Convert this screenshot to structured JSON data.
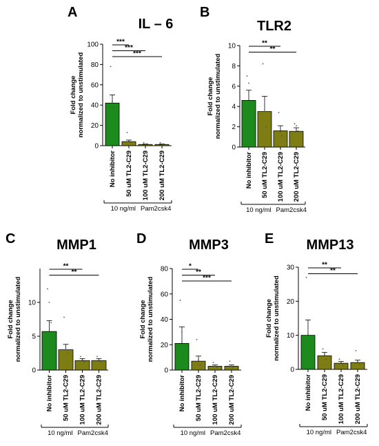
{
  "colors": {
    "green": "#1c8a1c",
    "olive": "#7d7d14"
  },
  "chart_data": [
    {
      "type": "bar",
      "panel": "A",
      "title": "IL – 6",
      "ylabel": [
        "Fold change",
        "normalized to unstimulated"
      ],
      "categories": [
        "No inhibitor",
        "50 uM TL2-C29",
        "100 uM TL2-C29",
        "200 uM TL2-C29"
      ],
      "values": [
        42,
        4,
        1.2,
        1.2
      ],
      "errors": [
        8,
        1.5,
        0.5,
        0.5
      ],
      "points": [
        [
          78,
          44,
          38
        ],
        [
          13,
          5,
          3
        ],
        [
          3,
          1.5,
          1
        ],
        [
          3,
          1.5,
          1
        ]
      ],
      "ylim": [
        0,
        100
      ],
      "yticks": [
        0,
        20,
        40,
        60,
        80,
        100
      ],
      "significance": [
        {
          "from": 0,
          "to": 1,
          "label": "***"
        },
        {
          "from": 0,
          "to": 2,
          "label": "***"
        },
        {
          "from": 0,
          "to": 3,
          "label": "***"
        }
      ],
      "group_labels": [
        "10 ng/ml",
        "Pam2csk4"
      ]
    },
    {
      "type": "bar",
      "panel": "B",
      "title": "TLR2",
      "ylabel": [
        "Fold change",
        "normalized to unstimulated"
      ],
      "categories": [
        "No inhibitor",
        "50 uM TL2-C29",
        "100 uM TL2-C29",
        "200 uM TL2-C29"
      ],
      "values": [
        4.6,
        3.5,
        1.6,
        1.55
      ],
      "errors": [
        1.0,
        1.5,
        0.5,
        0.35
      ],
      "points": [
        [
          7,
          6.3,
          4.5
        ],
        [
          8.2,
          3.5,
          2
        ],
        [
          3.4,
          1.5,
          1.1
        ],
        [
          2.3,
          2.1,
          1.6
        ]
      ],
      "ylim": [
        0,
        10
      ],
      "yticks": [
        0,
        2,
        4,
        6,
        8,
        10
      ],
      "significance": [
        {
          "from": 0,
          "to": 2,
          "label": "**"
        },
        {
          "from": 0,
          "to": 3,
          "label": "**"
        }
      ],
      "group_labels": [
        "10 ng/ml",
        "Pam2csk4"
      ]
    },
    {
      "type": "bar",
      "panel": "C",
      "title": "MMP1",
      "ylabel": [
        "Fold change",
        "normalized to unstimulated"
      ],
      "categories": [
        "No inhibitor",
        "50 uM TL2-C29",
        "100 uM TL2-C29",
        "200 uM TL2-C29"
      ],
      "values": [
        5.7,
        3.0,
        1.4,
        1.4
      ],
      "errors": [
        1.6,
        0.8,
        0.3,
        0.3
      ],
      "points": [
        [
          12,
          10,
          7
        ],
        [
          7.8,
          3,
          2.5
        ],
        [
          2,
          1.5,
          1.2
        ],
        [
          2,
          1.6,
          1.2
        ]
      ],
      "ylim": [
        0,
        15
      ],
      "yticks": [
        0,
        5,
        10
      ],
      "significance": [
        {
          "from": 0,
          "to": 2,
          "label": "**"
        },
        {
          "from": 0,
          "to": 3,
          "label": "**"
        }
      ],
      "group_labels": [
        "10 ng/ml",
        "Pam2csk4"
      ]
    },
    {
      "type": "bar",
      "panel": "D",
      "title": "MMP3",
      "ylabel": [
        "Fold change",
        "normalized to unstimulated"
      ],
      "categories": [
        "No inhibitor",
        "50 uM TL2-C29",
        "100 uM TL2-C29",
        "200 uM TL2-C29"
      ],
      "values": [
        21,
        7,
        3,
        3
      ],
      "errors": [
        13,
        4,
        1,
        1
      ],
      "points": [
        [
          55,
          30,
          10
        ],
        [
          24,
          8,
          4
        ],
        [
          6,
          3,
          2
        ],
        [
          7,
          3,
          2
        ]
      ],
      "ylim": [
        0,
        80
      ],
      "yticks": [
        0,
        20,
        40,
        60,
        80
      ],
      "significance": [
        {
          "from": 0,
          "to": 1,
          "label": "*"
        },
        {
          "from": 0,
          "to": 2,
          "label": "**"
        },
        {
          "from": 0,
          "to": 3,
          "label": "***"
        }
      ],
      "group_labels": [
        "10 ng/ml",
        "Pam2csk4"
      ]
    },
    {
      "type": "bar",
      "panel": "E",
      "title": "MMP13",
      "ylabel": [
        "Fold change",
        "normalized to unstimulated"
      ],
      "categories": [
        "No inhibitor",
        "50 uM TL2-C29",
        "100 uM TL2-C29",
        "200 uM TL2-C29"
      ],
      "values": [
        10,
        4,
        1.8,
        2.0
      ],
      "errors": [
        4.5,
        1.0,
        0.5,
        0.7
      ],
      "points": [
        [
          27,
          8,
          6
        ],
        [
          6,
          4.5,
          3
        ],
        [
          3,
          2,
          1.3
        ],
        [
          5.5,
          2.5,
          1.5
        ]
      ],
      "ylim": [
        0,
        30
      ],
      "yticks": [
        0,
        10,
        20,
        30
      ],
      "significance": [
        {
          "from": 0,
          "to": 2,
          "label": "**"
        },
        {
          "from": 0,
          "to": 3,
          "label": "**"
        }
      ],
      "group_labels": [
        "10 ng/ml",
        "Pam2csk4"
      ]
    }
  ]
}
